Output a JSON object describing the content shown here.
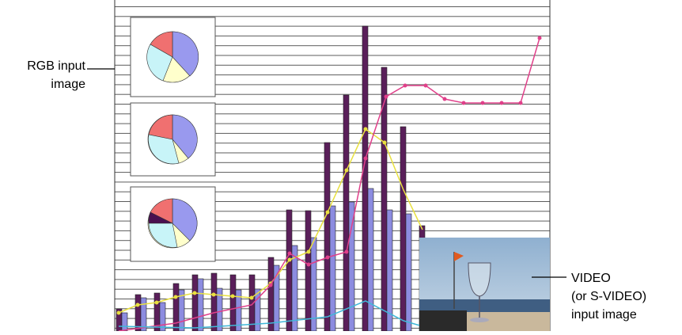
{
  "rgb_label": [
    "RGB input",
    "image"
  ],
  "video_label": [
    "VIDEO",
    "(or S-VIDEO)",
    "input image"
  ]
}
